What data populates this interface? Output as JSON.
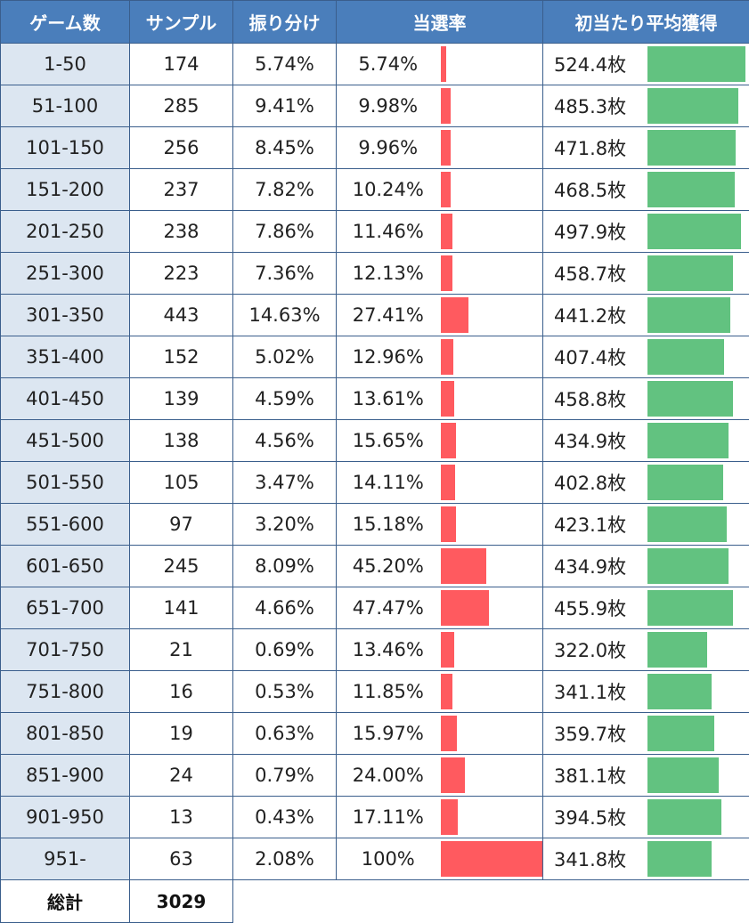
{
  "header": {
    "games": "ゲーム数",
    "samples": "サンプル",
    "share": "振り分け",
    "hit_rate": "当選率",
    "avg_gain": "初当たり平均獲得"
  },
  "footer": {
    "label": "総計",
    "total": "3029"
  },
  "colors": {
    "header_bg": "#4a7ebb",
    "range_bg": "#dce6f1",
    "hit_bar": "#ff5a5f",
    "gain_bar": "#62c280",
    "border": "#3a5e8c"
  },
  "chart_data": {
    "type": "table",
    "columns": [
      "ゲーム数",
      "サンプル",
      "振り分け",
      "当選率",
      "初当たり平均獲得"
    ],
    "rows": [
      {
        "range": "1-50",
        "samples": "174",
        "share": "5.74%",
        "rate": "5.74%",
        "rate_value": 5.74,
        "avg": "524.4枚",
        "avg_value": 524.4
      },
      {
        "range": "51-100",
        "samples": "285",
        "share": "9.41%",
        "rate": "9.98%",
        "rate_value": 9.98,
        "avg": "485.3枚",
        "avg_value": 485.3
      },
      {
        "range": "101-150",
        "samples": "256",
        "share": "8.45%",
        "rate": "9.96%",
        "rate_value": 9.96,
        "avg": "471.8枚",
        "avg_value": 471.8
      },
      {
        "range": "151-200",
        "samples": "237",
        "share": "7.82%",
        "rate": "10.24%",
        "rate_value": 10.24,
        "avg": "468.5枚",
        "avg_value": 468.5
      },
      {
        "range": "201-250",
        "samples": "238",
        "share": "7.86%",
        "rate": "11.46%",
        "rate_value": 11.46,
        "avg": "497.9枚",
        "avg_value": 497.9
      },
      {
        "range": "251-300",
        "samples": "223",
        "share": "7.36%",
        "rate": "12.13%",
        "rate_value": 12.13,
        "avg": "458.7枚",
        "avg_value": 458.7
      },
      {
        "range": "301-350",
        "samples": "443",
        "share": "14.63%",
        "rate": "27.41%",
        "rate_value": 27.41,
        "avg": "441.2枚",
        "avg_value": 441.2
      },
      {
        "range": "351-400",
        "samples": "152",
        "share": "5.02%",
        "rate": "12.96%",
        "rate_value": 12.96,
        "avg": "407.4枚",
        "avg_value": 407.4
      },
      {
        "range": "401-450",
        "samples": "139",
        "share": "4.59%",
        "rate": "13.61%",
        "rate_value": 13.61,
        "avg": "458.8枚",
        "avg_value": 458.8
      },
      {
        "range": "451-500",
        "samples": "138",
        "share": "4.56%",
        "rate": "15.65%",
        "rate_value": 15.65,
        "avg": "434.9枚",
        "avg_value": 434.9
      },
      {
        "range": "501-550",
        "samples": "105",
        "share": "3.47%",
        "rate": "14.11%",
        "rate_value": 14.11,
        "avg": "402.8枚",
        "avg_value": 402.8
      },
      {
        "range": "551-600",
        "samples": "97",
        "share": "3.20%",
        "rate": "15.18%",
        "rate_value": 15.18,
        "avg": "423.1枚",
        "avg_value": 423.1
      },
      {
        "range": "601-650",
        "samples": "245",
        "share": "8.09%",
        "rate": "45.20%",
        "rate_value": 45.2,
        "avg": "434.9枚",
        "avg_value": 434.9
      },
      {
        "range": "651-700",
        "samples": "141",
        "share": "4.66%",
        "rate": "47.47%",
        "rate_value": 47.47,
        "avg": "455.9枚",
        "avg_value": 455.9
      },
      {
        "range": "701-750",
        "samples": "21",
        "share": "0.69%",
        "rate": "13.46%",
        "rate_value": 13.46,
        "avg": "322.0枚",
        "avg_value": 322.0
      },
      {
        "range": "751-800",
        "samples": "16",
        "share": "0.53%",
        "rate": "11.85%",
        "rate_value": 11.85,
        "avg": "341.1枚",
        "avg_value": 341.1
      },
      {
        "range": "801-850",
        "samples": "19",
        "share": "0.63%",
        "rate": "15.97%",
        "rate_value": 15.97,
        "avg": "359.7枚",
        "avg_value": 359.7
      },
      {
        "range": "851-900",
        "samples": "24",
        "share": "0.79%",
        "rate": "24.00%",
        "rate_value": 24.0,
        "avg": "381.1枚",
        "avg_value": 381.1
      },
      {
        "range": "901-950",
        "samples": "13",
        "share": "0.43%",
        "rate": "17.11%",
        "rate_value": 17.11,
        "avg": "394.5枚",
        "avg_value": 394.5
      },
      {
        "range": "951-",
        "samples": "63",
        "share": "2.08%",
        "rate": "100%",
        "rate_value": 100,
        "avg": "341.8枚",
        "avg_value": 341.8
      }
    ],
    "rate_bar_max": 100,
    "avg_bar_max": 540
  }
}
